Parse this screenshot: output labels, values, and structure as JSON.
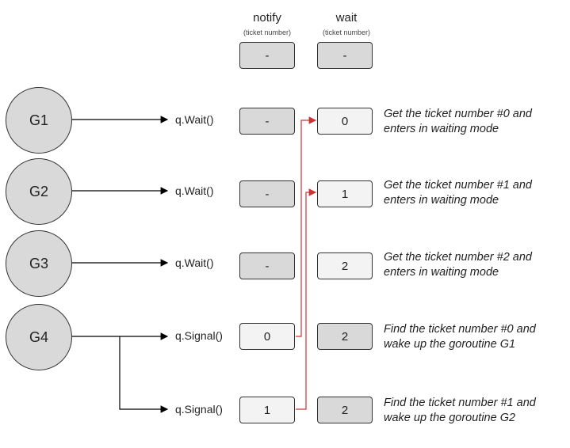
{
  "header": {
    "notify_title": "notify",
    "notify_sub": "(ticket number)",
    "wait_title": "wait",
    "wait_sub": "(ticket number)",
    "notify_initial": "-",
    "wait_initial": "-"
  },
  "rows": [
    {
      "goroutine": "G1",
      "call": "q.Wait()",
      "notify": "-",
      "wait": "0",
      "desc_line1": "Get the ticket number #0 and",
      "desc_line2": "enters in waiting mode"
    },
    {
      "goroutine": "G2",
      "call": "q.Wait()",
      "notify": "-",
      "wait": "1",
      "desc_line1": "Get the ticket number #1 and",
      "desc_line2": "enters in waiting mode"
    },
    {
      "goroutine": "G3",
      "call": "q.Wait()",
      "notify": "-",
      "wait": "2",
      "desc_line1": "Get the ticket number #2 and",
      "desc_line2": "enters in waiting mode"
    },
    {
      "goroutine": "G4",
      "call": "q.Signal()",
      "notify": "0",
      "wait": "2",
      "desc_line1": "Find the ticket number #0 and",
      "desc_line2": "wake up the goroutine G1"
    },
    {
      "goroutine": "",
      "call": "q.Signal()",
      "notify": "1",
      "wait": "2",
      "desc_line1": "Find the ticket number #1 and",
      "desc_line2": "wake up the goroutine G2"
    }
  ],
  "colors": {
    "box_dark": "#d9d9d9",
    "box_light": "#f3f3f3",
    "arrow_black": "#000000",
    "arrow_red": "#cc3333"
  }
}
